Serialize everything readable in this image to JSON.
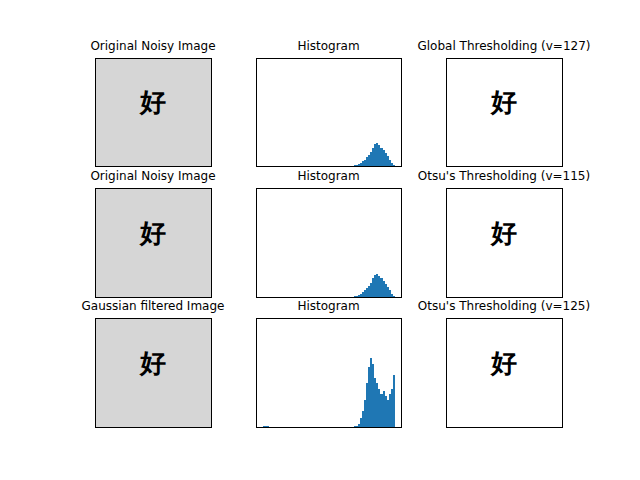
{
  "chart_data": [
    {
      "type": "image",
      "title": "Original Noisy Image",
      "annotation": "好",
      "color": "#d6d6d6"
    },
    {
      "type": "histogram",
      "title": "Histogram",
      "color": "#1f77b4",
      "tick_labels": false,
      "xlim": [
        -12.75,
        267.75
      ],
      "ylim": [
        0,
        100
      ],
      "bins": [
        0,
        4,
        8,
        12,
        16,
        20,
        24,
        28,
        32,
        36,
        40,
        44,
        48,
        52,
        56,
        60,
        64,
        68,
        72,
        76,
        80,
        84,
        88,
        92,
        96,
        100,
        104,
        108,
        112,
        116,
        120,
        124,
        128,
        132,
        136,
        140,
        144,
        148,
        152,
        156,
        160,
        164,
        168,
        172,
        176,
        180,
        184,
        188,
        192,
        196,
        200,
        204,
        208,
        212,
        216,
        220,
        224,
        228,
        232,
        236,
        240,
        244,
        248,
        252,
        256
      ],
      "counts": [
        0.3,
        0,
        0,
        0,
        0,
        0,
        0,
        0,
        0,
        0,
        0,
        0,
        0,
        0,
        0,
        0,
        0,
        0,
        0,
        0,
        0,
        0,
        0,
        0,
        0,
        0,
        0,
        0,
        0,
        0,
        0,
        0,
        0,
        0,
        0,
        0,
        0,
        0,
        0,
        0,
        0,
        0,
        0,
        0,
        0.5,
        1,
        2,
        3,
        4.5,
        6,
        8,
        10,
        13,
        17,
        20,
        21,
        19,
        17,
        15,
        12,
        9,
        6,
        3,
        1
      ]
    },
    {
      "type": "image",
      "title": "Global Thresholding (v=127)",
      "annotation": "好",
      "color": "#ffffff"
    },
    {
      "type": "image",
      "title": "Original Noisy Image",
      "annotation": "好",
      "color": "#d6d6d6"
    },
    {
      "type": "histogram",
      "title": "Histogram",
      "color": "#1f77b4",
      "tick_labels": false,
      "xlim": [
        -12.75,
        267.75
      ],
      "ylim": [
        0,
        100
      ],
      "bins": [
        0,
        4,
        8,
        12,
        16,
        20,
        24,
        28,
        32,
        36,
        40,
        44,
        48,
        52,
        56,
        60,
        64,
        68,
        72,
        76,
        80,
        84,
        88,
        92,
        96,
        100,
        104,
        108,
        112,
        116,
        120,
        124,
        128,
        132,
        136,
        140,
        144,
        148,
        152,
        156,
        160,
        164,
        168,
        172,
        176,
        180,
        184,
        188,
        192,
        196,
        200,
        204,
        208,
        212,
        216,
        220,
        224,
        228,
        232,
        236,
        240,
        244,
        248,
        252,
        256
      ],
      "counts": [
        0.3,
        0,
        0,
        0,
        0,
        0,
        0,
        0,
        0,
        0,
        0,
        0,
        0,
        0,
        0,
        0,
        0,
        0,
        0,
        0,
        0,
        0,
        0,
        0,
        0,
        0,
        0,
        0,
        0,
        0,
        0,
        0,
        0,
        0,
        0,
        0,
        0,
        0,
        0,
        0,
        0,
        0,
        0,
        0,
        0.5,
        1,
        2,
        3,
        4.5,
        6,
        8,
        10,
        13,
        17,
        20,
        21,
        19,
        17,
        15,
        12,
        9,
        6,
        3,
        1
      ]
    },
    {
      "type": "image",
      "title": "Otsu's Thresholding (v=115)",
      "annotation": "好",
      "color": "#ffffff"
    },
    {
      "type": "image",
      "title": "Gaussian filtered Image",
      "annotation": "好",
      "color": "#d6d6d6"
    },
    {
      "type": "histogram",
      "title": "Histogram",
      "color": "#1f77b4",
      "tick_labels": false,
      "xlim": [
        -12.75,
        267.75
      ],
      "ylim": [
        0,
        100
      ],
      "bins": [
        0,
        4,
        8,
        12,
        16,
        20,
        24,
        28,
        32,
        36,
        40,
        44,
        48,
        52,
        56,
        60,
        64,
        68,
        72,
        76,
        80,
        84,
        88,
        92,
        96,
        100,
        104,
        108,
        112,
        116,
        120,
        124,
        128,
        132,
        136,
        140,
        144,
        148,
        152,
        156,
        160,
        164,
        168,
        172,
        176,
        180,
        184,
        188,
        192,
        196,
        200,
        204,
        208,
        212,
        216,
        220,
        224,
        228,
        232,
        236,
        240,
        244,
        248,
        252,
        256
      ],
      "counts": [
        1,
        1,
        0.5,
        0,
        0,
        0,
        0,
        0,
        0,
        0,
        0,
        0,
        0,
        0,
        0,
        0,
        0,
        0,
        0,
        0,
        0,
        0,
        0,
        0,
        0,
        0,
        0,
        0,
        0,
        0,
        0,
        0,
        0,
        0,
        0,
        0,
        0,
        0,
        0,
        0,
        0,
        0,
        0,
        0,
        0.5,
        1,
        3,
        8,
        15,
        25,
        40,
        55,
        63,
        58,
        45,
        40,
        35,
        30,
        33,
        28,
        25,
        30,
        35,
        48
      ]
    },
    {
      "type": "image",
      "title": "Otsu's Thresholding (v=125)",
      "annotation": "好",
      "color": "#ffffff"
    }
  ]
}
